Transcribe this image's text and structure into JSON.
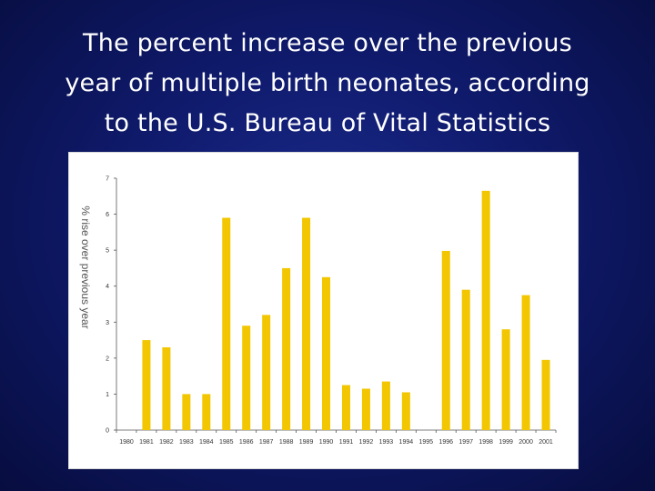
{
  "slide": {
    "title_lines": [
      "The percent increase over the previous",
      "year of multiple birth neonates, according",
      "to the U.S. Bureau of Vital Statistics"
    ]
  },
  "chart_data": {
    "type": "bar",
    "categories": [
      "1980",
      "1981",
      "1982",
      "1983",
      "1984",
      "1985",
      "1986",
      "1987",
      "1988",
      "1989",
      "1990",
      "1991",
      "1992",
      "1993",
      "1994",
      "1995",
      "1996",
      "1997",
      "1998",
      "1999",
      "2000",
      "2001"
    ],
    "values": [
      0,
      2.5,
      2.3,
      1.0,
      1.0,
      5.9,
      2.9,
      3.2,
      4.5,
      5.9,
      4.25,
      1.25,
      1.15,
      1.35,
      1.05,
      0,
      4.98,
      3.9,
      6.65,
      2.8,
      3.75,
      1.95
    ],
    "ylabel": "% rise over previous year",
    "ylim": [
      0,
      7
    ],
    "yticks": [
      0,
      1,
      2,
      3,
      4,
      5,
      6,
      7
    ],
    "bar_color": "#f2c600",
    "grid": false
  }
}
